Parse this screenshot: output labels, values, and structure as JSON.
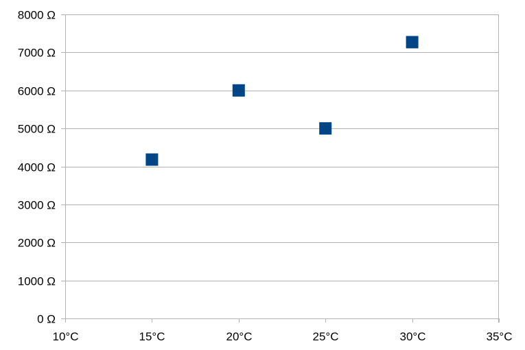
{
  "chart_data": {
    "type": "scatter",
    "title": "",
    "xlabel": "",
    "ylabel": "",
    "xlim": [
      10,
      35
    ],
    "ylim": [
      0,
      8000
    ],
    "x_ticks": [
      10,
      15,
      20,
      25,
      30,
      35
    ],
    "y_ticks": [
      0,
      1000,
      2000,
      3000,
      4000,
      5000,
      6000,
      7000,
      8000
    ],
    "x_tick_labels": [
      "10°C",
      "15°C",
      "20°C",
      "25°C",
      "30°C",
      "35°C"
    ],
    "y_tick_labels": [
      "0 Ω",
      "1000 Ω",
      "2000 Ω",
      "3000 Ω",
      "4000 Ω",
      "5000 Ω",
      "6000 Ω",
      "7000 Ω",
      "8000 Ω"
    ],
    "grid": "horizontal",
    "legend": "none",
    "marker": "square",
    "series": [
      {
        "color": "#004586",
        "points": [
          {
            "x": 15,
            "y": 4180
          },
          {
            "x": 20,
            "y": 6000
          },
          {
            "x": 25,
            "y": 5000
          },
          {
            "x": 30,
            "y": 7270
          }
        ]
      }
    ]
  }
}
